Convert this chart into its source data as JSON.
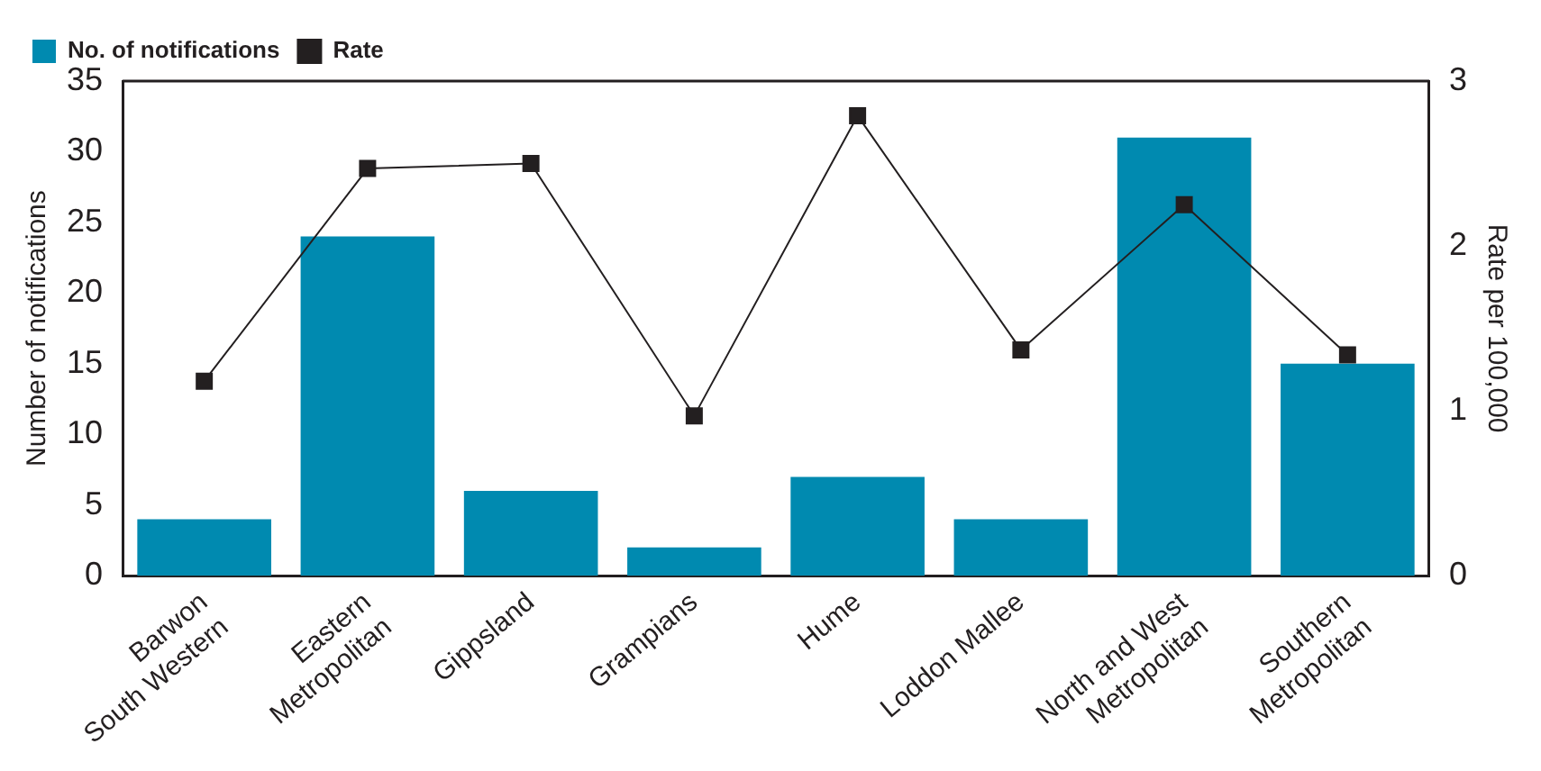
{
  "chart_data": {
    "type": "bar",
    "categories": [
      "Barwon\nSouth Western",
      "Eastern\nMetropolitan",
      "Gippsland",
      "Grampians",
      "Hume",
      "Loddon Mallee",
      "North and West\nMetropolitan",
      "Southern\nMetropolitan"
    ],
    "series": [
      {
        "name": "No. of notifications",
        "color": "#008ab0",
        "values": [
          4,
          24,
          6,
          2,
          7,
          4,
          31,
          15
        ]
      },
      {
        "name": "Rate",
        "type": "line",
        "axis": "y2",
        "color": "#231f20",
        "marker": "square",
        "values": [
          1.18,
          2.47,
          2.5,
          0.97,
          2.79,
          1.37,
          2.25,
          1.34
        ]
      }
    ],
    "ylabel": "Number of notifications",
    "y2label": "Rate per 100,000",
    "ylim": [
      0,
      35
    ],
    "yticks": [
      0,
      5,
      10,
      15,
      20,
      25,
      30,
      35
    ],
    "y2lim": [
      0,
      3
    ],
    "y2ticks": [
      0,
      1,
      2,
      3
    ],
    "grid": false,
    "legend": "top left"
  }
}
